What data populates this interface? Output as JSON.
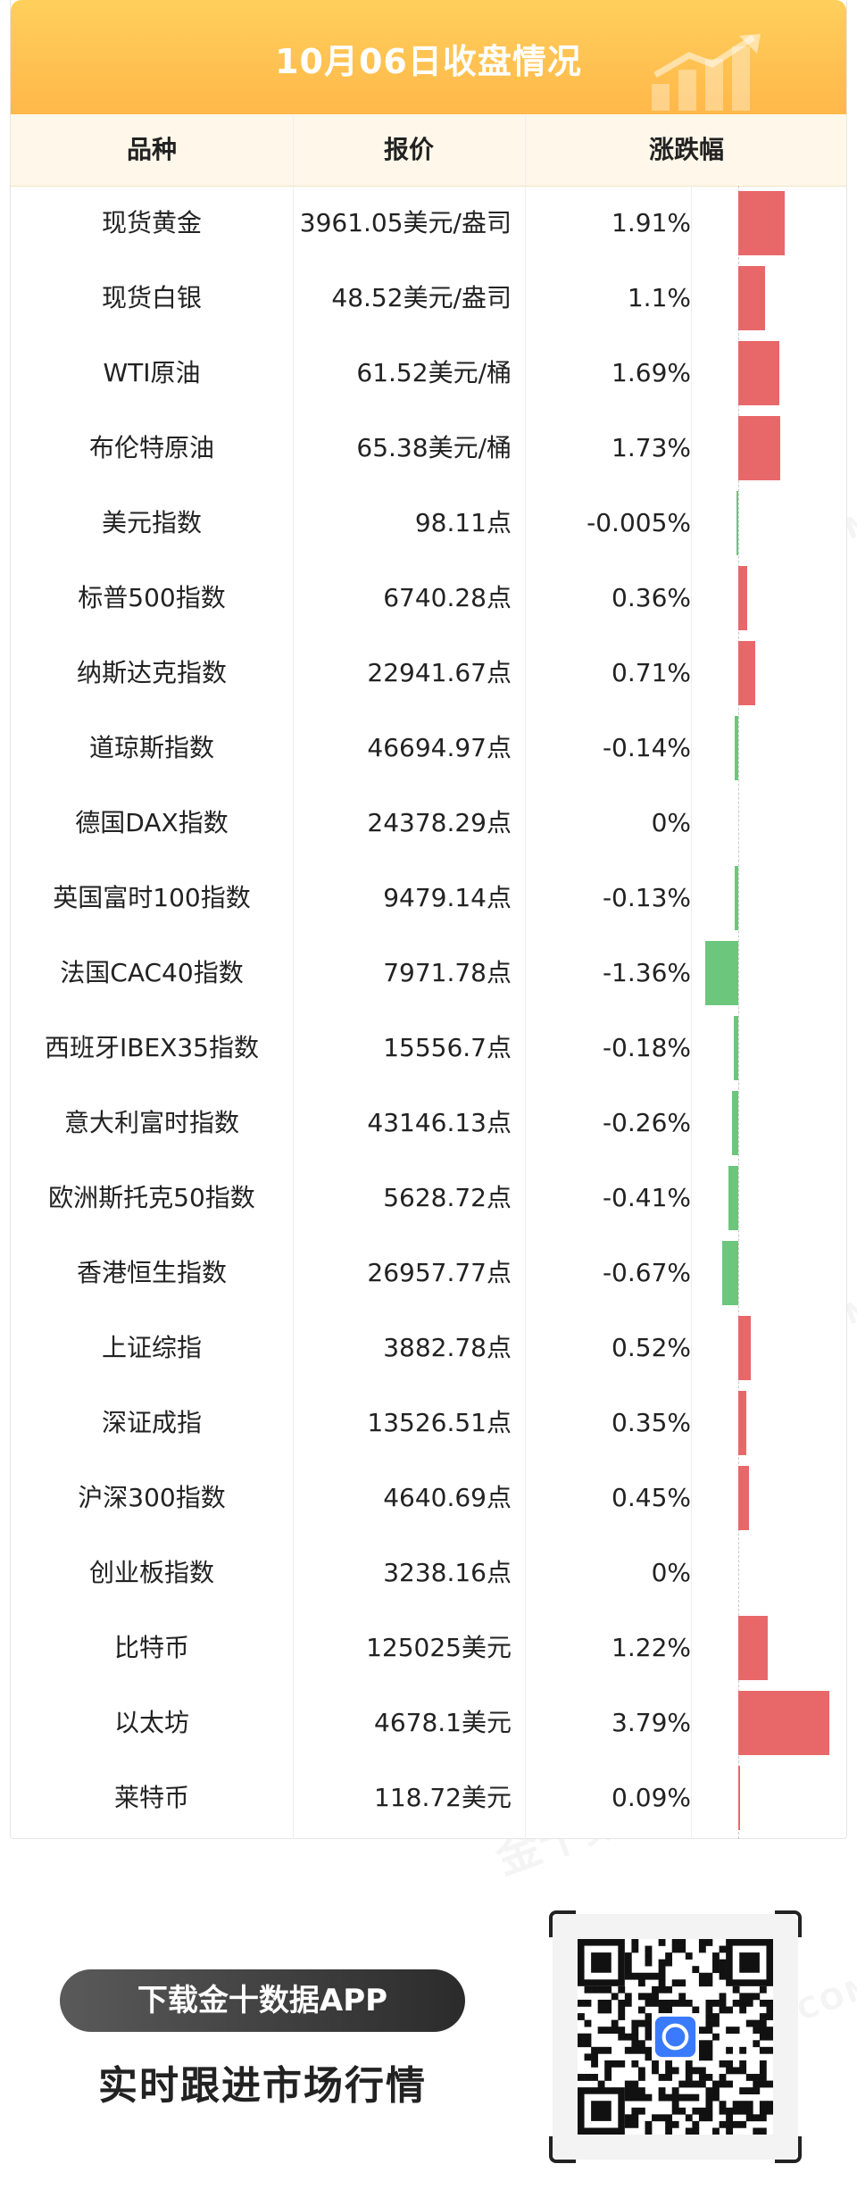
{
  "banner": {
    "title": "10月06日收盘情况"
  },
  "table": {
    "headers": {
      "name": "品种",
      "price": "报价",
      "change": "涨跌幅"
    }
  },
  "chart_data": {
    "type": "bar",
    "orientation": "horizontal",
    "title": "10月06日收盘情况",
    "categories": [
      "现货黄金",
      "现货白银",
      "WTI原油",
      "布伦特原油",
      "美元指数",
      "标普500指数",
      "纳斯达克指数",
      "道琼斯指数",
      "德国DAX指数",
      "英国富时100指数",
      "法国CAC40指数",
      "西班牙IBEX35指数",
      "意大利富时指数",
      "欧洲斯托克50指数",
      "香港恒生指数",
      "上证综指",
      "深证成指",
      "沪深300指数",
      "创业板指数",
      "比特币",
      "以太坊",
      "莱特币"
    ],
    "prices": [
      "3961.05美元/盎司",
      "48.52美元/盎司",
      "61.52美元/桶",
      "65.38美元/桶",
      "98.11点",
      "6740.28点",
      "22941.67点",
      "46694.97点",
      "24378.29点",
      "9479.14点",
      "7971.78点",
      "15556.7点",
      "43146.13点",
      "5628.72点",
      "26957.77点",
      "3882.78点",
      "13526.51点",
      "4640.69点",
      "3238.16点",
      "125025美元",
      "4678.1美元",
      "118.72美元"
    ],
    "labels": [
      "1.91%",
      "1.1%",
      "1.69%",
      "1.73%",
      "-0.005%",
      "0.36%",
      "0.71%",
      "-0.14%",
      "0%",
      "-0.13%",
      "-1.36%",
      "-0.18%",
      "-0.26%",
      "-0.41%",
      "-0.67%",
      "0.52%",
      "0.35%",
      "0.45%",
      "0%",
      "1.22%",
      "3.79%",
      "0.09%"
    ],
    "values": [
      1.91,
      1.1,
      1.69,
      1.73,
      -0.005,
      0.36,
      0.71,
      -0.14,
      0,
      -0.13,
      -1.36,
      -0.18,
      -0.26,
      -0.41,
      -0.67,
      0.52,
      0.35,
      0.45,
      0,
      1.22,
      3.79,
      0.09
    ],
    "positive_color": "#e8686a",
    "negative_color": "#6cc67c"
  },
  "footer": {
    "download_label": "下载金十数据APP",
    "tagline": "实时跟进市场行情"
  },
  "colors": {
    "banner_top": "#ffcf5c",
    "banner_bottom": "#ffb84a",
    "header_bg": "#fff8ea",
    "qr_accent": "#3a7bfd"
  }
}
